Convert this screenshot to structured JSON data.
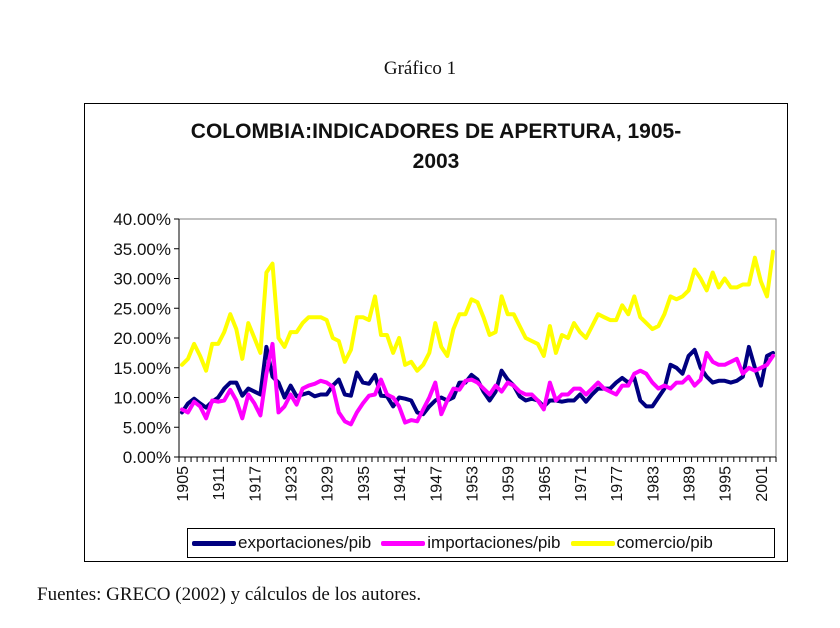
{
  "caption": "Gráfico 1",
  "source_note": "Fuentes: GRECO (2002) y cálculos de los autores.",
  "chart_data": {
    "type": "line",
    "title_line1": "COLOMBIA:INDICADORES DE APERTURA, 1905-",
    "title_line2": "2003",
    "xlabel": "",
    "ylabel": "",
    "ylim": [
      0,
      40
    ],
    "xlim": [
      1905,
      2003
    ],
    "y_ticks": [
      0,
      5,
      10,
      15,
      20,
      25,
      30,
      35,
      40
    ],
    "y_tick_labels": [
      "0.00%",
      "5.00%",
      "10.00%",
      "15.00%",
      "20.00%",
      "25.00%",
      "30.00%",
      "35.00%",
      "40.00%"
    ],
    "x_tick_labels": [
      "1905",
      "1911",
      "1917",
      "1923",
      "1929",
      "1935",
      "1941",
      "1947",
      "1953",
      "1959",
      "1965",
      "1971",
      "1977",
      "1983",
      "1989",
      "1995",
      "2001"
    ],
    "x_start": 1905,
    "grid": false,
    "legend_position": "bottom",
    "series": [
      {
        "name": "exportaciones/pib",
        "color": "#000080",
        "values": [
          7.5,
          9,
          9.8,
          9,
          8.3,
          9.3,
          10,
          11.5,
          12.5,
          12.5,
          10.3,
          11.5,
          11,
          10.5,
          18.5,
          13.5,
          12.5,
          10,
          12,
          10.2,
          10.5,
          10.8,
          10.2,
          10.5,
          10.5,
          12,
          13,
          10.5,
          10.3,
          14.2,
          12.5,
          12.3,
          13.8,
          10.3,
          10.2,
          8.5,
          10,
          9.8,
          9.5,
          7.5,
          7.2,
          8.5,
          9.5,
          10,
          9.5,
          10,
          12.5,
          12.5,
          13.8,
          13,
          11,
          9.5,
          11,
          14.5,
          13,
          12,
          10.2,
          9.5,
          9.8,
          9.5,
          8.5,
          9.5,
          9.5,
          9.3,
          9.5,
          9.5,
          10.5,
          9.3,
          10.5,
          11.5,
          11.5,
          11.5,
          12.5,
          13.3,
          12.5,
          13.3,
          9.5,
          8.5,
          8.5,
          10,
          11.5,
          15.5,
          15,
          14,
          17,
          18,
          15,
          13.5,
          12.5,
          12.8,
          12.8,
          12.5,
          12.8,
          13.5,
          18.5,
          15,
          12,
          17,
          17.5
        ]
      },
      {
        "name": "importaciones/pib",
        "color": "#FF00FF",
        "values": [
          8,
          7.5,
          9.3,
          8.5,
          6.5,
          9.5,
          9.3,
          9.5,
          11.3,
          9.5,
          6.5,
          10.5,
          9,
          7,
          14,
          19,
          7.5,
          8.5,
          10.5,
          8.8,
          11.5,
          12,
          12.3,
          12.8,
          12.5,
          11.8,
          7.5,
          6,
          5.5,
          7.5,
          9,
          10.3,
          10.5,
          13,
          10.5,
          10,
          8.5,
          5.8,
          6.2,
          6,
          8,
          10,
          12.5,
          7.2,
          9.5,
          11.5,
          11.3,
          12.8,
          13,
          12.5,
          11.5,
          10.5,
          12,
          11,
          12.5,
          12,
          11,
          10.5,
          10.5,
          9.5,
          8,
          12.5,
          9.5,
          10.5,
          10.5,
          11.5,
          11.5,
          10.5,
          11.5,
          12.5,
          11.5,
          11,
          10.5,
          12,
          12,
          14,
          14.5,
          14,
          12.5,
          11.5,
          12,
          11.5,
          12.5,
          12.5,
          13.5,
          12,
          13,
          17.5,
          16,
          15.5,
          15.5,
          16,
          16.5,
          14,
          15,
          14.5,
          15,
          15.5,
          17
        ]
      },
      {
        "name": "comercio/pib",
        "color": "#FFFF00",
        "values": [
          15.5,
          16.5,
          19,
          17,
          14.5,
          19,
          19,
          21,
          24,
          21.5,
          16.5,
          22.5,
          20,
          17.5,
          31,
          32.5,
          20,
          18.5,
          21,
          21,
          22.5,
          23.5,
          23.5,
          23.5,
          23,
          20,
          19.5,
          16,
          18,
          23.5,
          23.5,
          23,
          27,
          20.5,
          20.5,
          17.5,
          20,
          15.5,
          16,
          14.5,
          15.5,
          17.5,
          22.5,
          18.5,
          17,
          21.5,
          24,
          24,
          26.5,
          26,
          23.5,
          20.5,
          21,
          27,
          24,
          24,
          22,
          20,
          19.5,
          19,
          17,
          22,
          17.5,
          20.5,
          20,
          22.5,
          21,
          20,
          22,
          24,
          23.5,
          23,
          23,
          25.5,
          24,
          27,
          23.5,
          22.5,
          21.5,
          22,
          24,
          27,
          26.5,
          27,
          28,
          31.5,
          30,
          28,
          31,
          28.5,
          30,
          28.5,
          28.5,
          29,
          29,
          33.5,
          29.5,
          27,
          34.5
        ]
      }
    ]
  }
}
